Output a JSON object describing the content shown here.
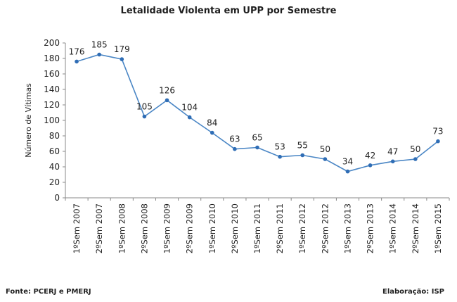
{
  "chart_data": {
    "type": "line",
    "title": "Letalidade Violenta em UPP por Semestre",
    "xlabel": "",
    "ylabel": "Número de Vítimas",
    "ylim": [
      0,
      200
    ],
    "yticks": [
      0,
      20,
      40,
      60,
      80,
      100,
      120,
      140,
      160,
      180,
      200
    ],
    "grid": false,
    "categories": [
      "1ºSem 2007",
      "2ºSem 2007",
      "1ºSem 2008",
      "2ºSem 2008",
      "1ºSem 2009",
      "2ºSem 2009",
      "1ºSem 2010",
      "2ºSem 2010",
      "1ºSem 2011",
      "2ºSem 2011",
      "1ºSem 2012",
      "2ºSem 2012",
      "1ºSem 2013",
      "2ºSem 2013",
      "1ºSem 2014",
      "2ºSem 2014",
      "1ºSem 2015"
    ],
    "values": [
      176,
      185,
      179,
      105,
      126,
      104,
      84,
      63,
      65,
      53,
      55,
      50,
      34,
      42,
      47,
      50,
      73
    ],
    "line_color": "#4a86c5",
    "data_labels": true
  },
  "footer": {
    "source": "Fonte: PCERJ e PMERJ",
    "credit": "Elaboração: ISP"
  }
}
